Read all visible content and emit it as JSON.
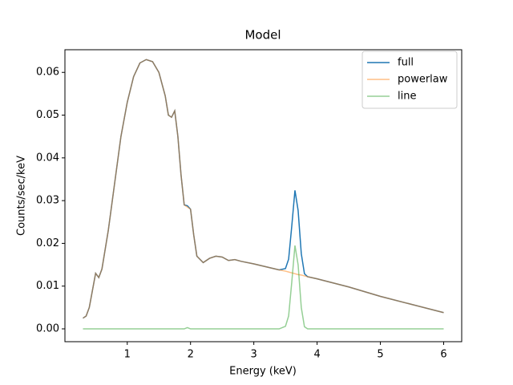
{
  "chart_data": {
    "type": "line",
    "title": "Model",
    "xlabel": "Energy (keV)",
    "ylabel": "Counts/sec/keV",
    "x": [
      0.3,
      0.35,
      0.4,
      0.45,
      0.5,
      0.55,
      0.6,
      0.7,
      0.8,
      0.9,
      1.0,
      1.1,
      1.2,
      1.3,
      1.4,
      1.5,
      1.6,
      1.65,
      1.7,
      1.75,
      1.8,
      1.85,
      1.9,
      1.95,
      2.0,
      2.05,
      2.1,
      2.2,
      2.3,
      2.4,
      2.5,
      2.6,
      2.7,
      2.8,
      3.0,
      3.2,
      3.4,
      3.5,
      3.55,
      3.6,
      3.65,
      3.7,
      3.75,
      3.8,
      3.85,
      4.0,
      4.5,
      5.0,
      5.5,
      6.0
    ],
    "series": [
      {
        "name": "full",
        "color": "#1f77b4",
        "alpha": 1,
        "values": [
          0.0025,
          0.003,
          0.005,
          0.009,
          0.013,
          0.012,
          0.014,
          0.023,
          0.034,
          0.045,
          0.053,
          0.059,
          0.0622,
          0.063,
          0.0625,
          0.06,
          0.0545,
          0.05,
          0.0495,
          0.051,
          0.045,
          0.036,
          0.029,
          0.0288,
          0.028,
          0.022,
          0.017,
          0.0155,
          0.0165,
          0.017,
          0.0168,
          0.016,
          0.0162,
          0.0158,
          0.0152,
          0.0145,
          0.0138,
          0.0141,
          0.0163,
          0.0241,
          0.0324,
          0.0277,
          0.0176,
          0.0129,
          0.0122,
          0.0117,
          0.0098,
          0.0076,
          0.0057,
          0.0038
        ]
      },
      {
        "name": "powerlaw",
        "color": "#ff7f0e",
        "alpha": 0.5,
        "values": [
          0.0025,
          0.003,
          0.005,
          0.009,
          0.013,
          0.012,
          0.014,
          0.023,
          0.034,
          0.045,
          0.053,
          0.059,
          0.0622,
          0.063,
          0.0625,
          0.06,
          0.0545,
          0.05,
          0.0495,
          0.051,
          0.045,
          0.036,
          0.029,
          0.0285,
          0.028,
          0.022,
          0.017,
          0.0155,
          0.0165,
          0.017,
          0.0168,
          0.016,
          0.0162,
          0.0158,
          0.0152,
          0.0145,
          0.0138,
          0.0135,
          0.0133,
          0.0131,
          0.0129,
          0.0127,
          0.0126,
          0.0124,
          0.0122,
          0.0117,
          0.0098,
          0.0076,
          0.0057,
          0.0038
        ]
      },
      {
        "name": "line",
        "color": "#2ca02c",
        "alpha": 0.5,
        "values": [
          0,
          0,
          0,
          0,
          0,
          0,
          0,
          0,
          0,
          0,
          0,
          0,
          0,
          0,
          0,
          0,
          0,
          0,
          0,
          0,
          0,
          0,
          0,
          0.0003,
          0,
          0,
          0,
          0,
          0,
          0,
          0,
          0,
          0,
          0,
          0,
          0,
          0,
          0.0006,
          0.003,
          0.011,
          0.0195,
          0.015,
          0.005,
          0.0005,
          0,
          0,
          0,
          0,
          0,
          0
        ]
      }
    ],
    "xlim": [
      0.015,
      6.285
    ],
    "xticks": [
      1,
      2,
      3,
      4,
      5,
      6
    ],
    "ylim": [
      -0.003,
      0.0653
    ],
    "yticks": [
      {
        "value": 0,
        "label": "0.00"
      },
      {
        "value": 0.01,
        "label": "0.01"
      },
      {
        "value": 0.02,
        "label": "0.02"
      },
      {
        "value": 0.03,
        "label": "0.03"
      },
      {
        "value": 0.04,
        "label": "0.04"
      },
      {
        "value": 0.05,
        "label": "0.05"
      },
      {
        "value": 0.06,
        "label": "0.06"
      }
    ],
    "legend": "upper right"
  }
}
